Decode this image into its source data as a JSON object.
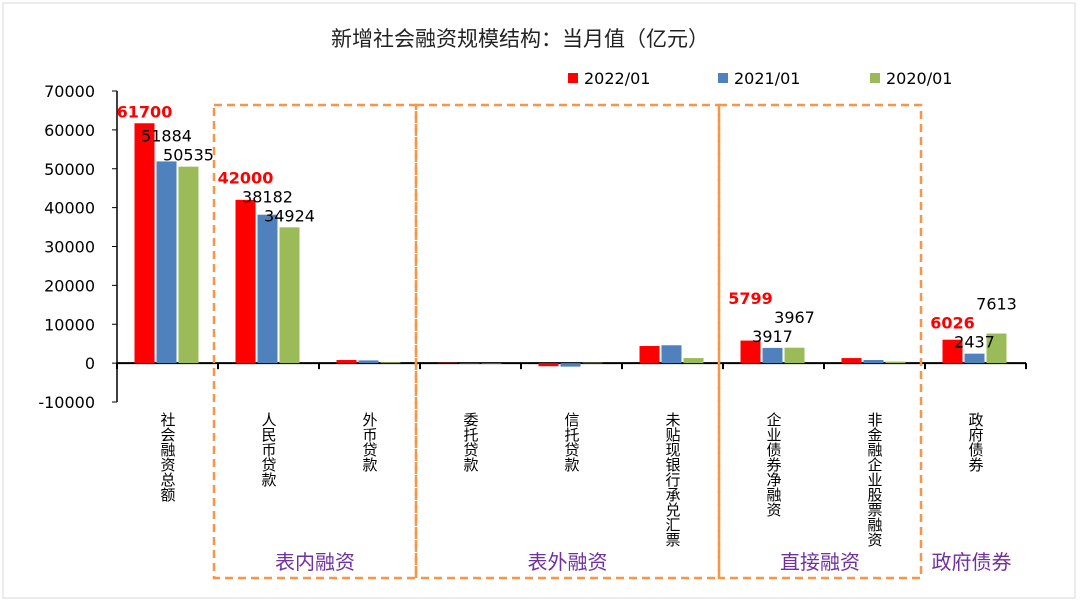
{
  "chart_data": {
    "type": "bar",
    "title": "新增社会融资规模结构：当月值（亿元）",
    "categories": [
      "社会融资总额",
      "人民币贷款",
      "外币贷款",
      "委托贷款",
      "信托贷款",
      "未贴现银行承兑汇票",
      "企业债券净融资",
      "非金融企业股票融资",
      "政府债券"
    ],
    "series": [
      {
        "name": "2022/01",
        "color": "#ff0000",
        "values": [
          61700,
          42000,
          800,
          100,
          -800,
          4400,
          5799,
          1300,
          6026
        ],
        "labels": [
          "61700",
          "42000",
          "",
          "",
          "",
          "",
          "5799",
          "",
          "6026"
        ]
      },
      {
        "name": "2021/01",
        "color": "#4f81bd",
        "values": [
          51884,
          38182,
          700,
          0,
          -900,
          4600,
          3917,
          800,
          2437
        ],
        "labels": [
          "51884",
          "38182",
          "",
          "",
          "",
          "",
          "3917",
          "",
          "2437"
        ]
      },
      {
        "name": "2020/01",
        "color": "#9bbb59",
        "values": [
          50535,
          34924,
          200,
          0,
          100,
          1300,
          3967,
          400,
          7613
        ],
        "labels": [
          "50535",
          "34924",
          "",
          "",
          "",
          "",
          "3967",
          "",
          "7613"
        ]
      }
    ],
    "ylim": [
      -10000,
      70000
    ],
    "yticks": [
      -10000,
      0,
      10000,
      20000,
      30000,
      40000,
      50000,
      60000,
      70000
    ],
    "legend": "top-right",
    "groups": [
      {
        "label": "表内融资",
        "boxed": true,
        "from": 1,
        "to": 2
      },
      {
        "label": "表外融资",
        "boxed": true,
        "from": 3,
        "to": 5
      },
      {
        "label": "直接融资",
        "boxed": true,
        "from": 6,
        "to": 7
      },
      {
        "label": "政府债券",
        "boxed": false,
        "from": 8,
        "to": 8
      }
    ]
  }
}
